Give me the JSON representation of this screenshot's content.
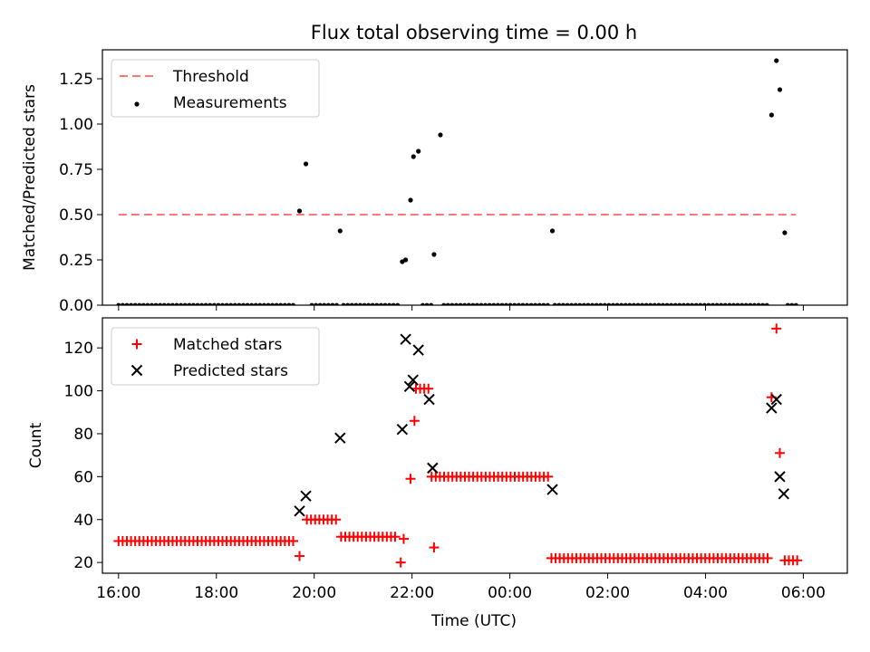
{
  "figure": {
    "title": "Flux total observing time = 0.00 h",
    "xlabel": "Time (UTC)"
  },
  "chart_data": [
    {
      "type": "scatter",
      "ylabel": "Matched/Predicted stars",
      "x_unit": "hours after 16:00 UTC",
      "xlim": [
        -0.33,
        14.9
      ],
      "ylim": [
        0.0,
        1.41
      ],
      "xticks": [
        0,
        2,
        4,
        6,
        8,
        10,
        12,
        14
      ],
      "xtick_labels": [
        "16:00",
        "18:00",
        "20:00",
        "22:00",
        "00:00",
        "02:00",
        "04:00",
        "06:00"
      ],
      "yticks": [
        0.0,
        0.25,
        0.5,
        0.75,
        1.0,
        1.25
      ],
      "ytick_labels": [
        "0.00",
        "0.25",
        "0.50",
        "0.75",
        "1.00",
        "1.25"
      ],
      "legend_position": "top-left",
      "threshold": {
        "name": "Threshold",
        "value": 0.5,
        "x_range": [
          0,
          13.85
        ],
        "color": "#ff7777"
      },
      "series": [
        {
          "name": "Measurements",
          "color": "#000000",
          "points": [
            [
              3.7,
              0.52
            ],
            [
              3.83,
              0.78
            ],
            [
              4.53,
              0.41
            ],
            [
              5.8,
              0.24
            ],
            [
              5.87,
              0.25
            ],
            [
              5.97,
              0.58
            ],
            [
              6.03,
              0.82
            ],
            [
              6.13,
              0.85
            ],
            [
              6.45,
              0.28
            ],
            [
              6.58,
              0.94
            ],
            [
              8.87,
              0.41
            ],
            [
              13.35,
              1.05
            ],
            [
              13.45,
              1.35
            ],
            [
              13.52,
              1.19
            ],
            [
              13.62,
              0.4
            ]
          ],
          "zero_segments": [
            [
              0,
              3.62
            ],
            [
              3.95,
              4.5
            ],
            [
              4.6,
              5.77
            ],
            [
              6.22,
              6.42
            ],
            [
              6.65,
              8.82
            ],
            [
              8.92,
              13.3
            ],
            [
              13.68,
              13.88
            ]
          ]
        }
      ]
    },
    {
      "type": "scatter",
      "ylabel": "Count",
      "x_unit": "hours after 16:00 UTC",
      "xlim": [
        -0.33,
        14.9
      ],
      "ylim": [
        15,
        134
      ],
      "xticks": [
        0,
        2,
        4,
        6,
        8,
        10,
        12,
        14
      ],
      "xtick_labels": [
        "16:00",
        "18:00",
        "20:00",
        "22:00",
        "00:00",
        "02:00",
        "04:00",
        "06:00"
      ],
      "yticks": [
        20,
        40,
        60,
        80,
        100,
        120
      ],
      "ytick_labels": [
        "20",
        "40",
        "60",
        "80",
        "100",
        "120"
      ],
      "legend_position": "top-left",
      "series": [
        {
          "name": "Matched stars",
          "color": "#ff0000",
          "marker": "plus",
          "points": [
            [
              3.7,
              23
            ],
            [
              5.77,
              20
            ],
            [
              5.83,
              31
            ],
            [
              5.97,
              59
            ],
            [
              6.05,
              86
            ],
            [
              6.45,
              27
            ],
            [
              13.35,
              97
            ],
            [
              13.45,
              129
            ],
            [
              13.52,
              71
            ]
          ],
          "runs": [
            {
              "value": 30,
              "x_range": [
                0,
                3.62
              ]
            },
            {
              "value": 40,
              "x_range": [
                3.85,
                4.48
              ]
            },
            {
              "value": 32,
              "x_range": [
                4.55,
                5.72
              ]
            },
            {
              "value": 101,
              "x_range": [
                6.08,
                6.35
              ]
            },
            {
              "value": 60,
              "x_range": [
                6.4,
                8.8
              ]
            },
            {
              "value": 22,
              "x_range": [
                8.85,
                13.3
              ]
            },
            {
              "value": 21,
              "x_range": [
                13.62,
                13.9
              ]
            }
          ]
        },
        {
          "name": "Predicted stars",
          "color": "#000000",
          "marker": "x",
          "points": [
            [
              3.7,
              44
            ],
            [
              3.83,
              51
            ],
            [
              4.53,
              78
            ],
            [
              5.8,
              82
            ],
            [
              5.87,
              124
            ],
            [
              5.95,
              102
            ],
            [
              6.02,
              105
            ],
            [
              6.13,
              119
            ],
            [
              6.35,
              96
            ],
            [
              6.42,
              64
            ],
            [
              8.87,
              54
            ],
            [
              13.35,
              92
            ],
            [
              13.45,
              96
            ],
            [
              13.52,
              60
            ],
            [
              13.6,
              52
            ]
          ]
        }
      ]
    }
  ]
}
